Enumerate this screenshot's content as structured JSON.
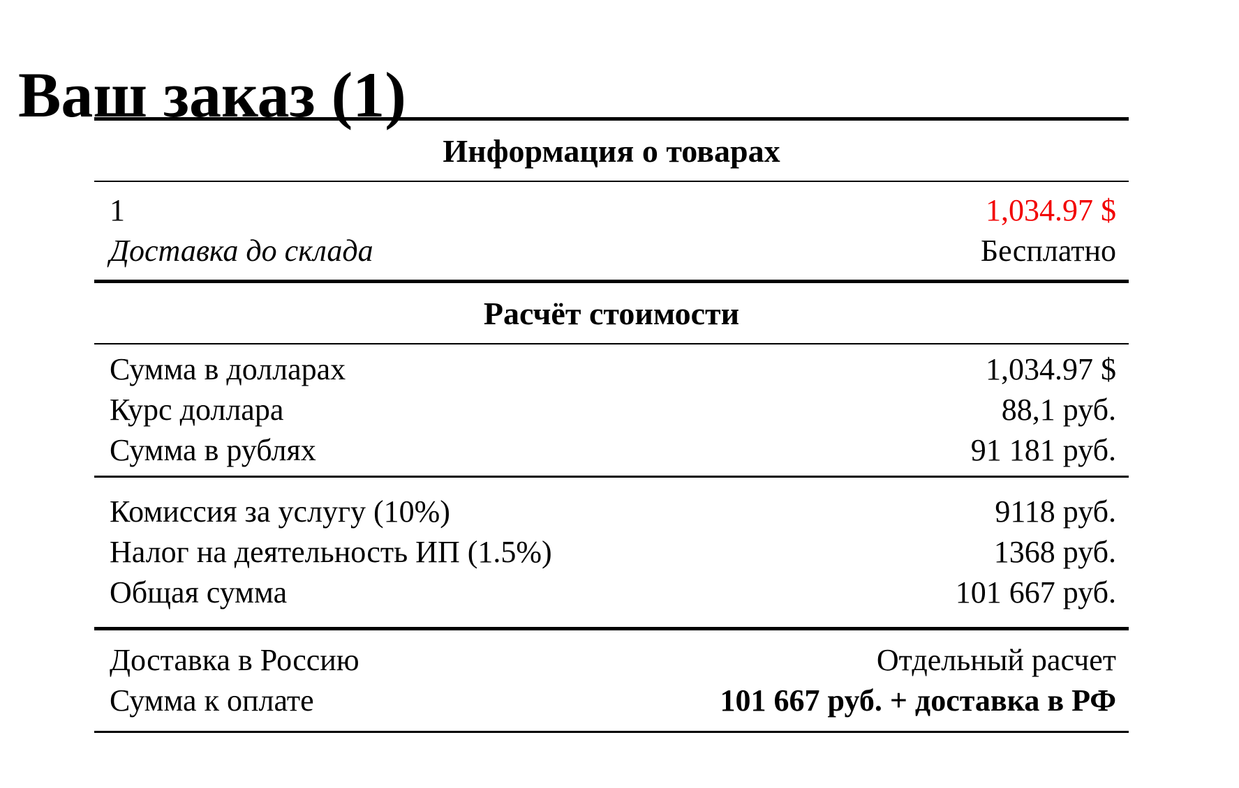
{
  "title": "Ваш заказ (1)",
  "colors": {
    "price_highlight": "#f20000",
    "text": "#000000",
    "rule_lines": "#000000"
  },
  "table": {
    "section_products_header": "Информация о товарах",
    "section_calc_header": "Расчёт стоимости",
    "products": {
      "qty_row": {
        "label": "1",
        "value": "1,034.97 $"
      },
      "delivery_row": {
        "label": "Доставка до склада",
        "value": "Бесплатно"
      }
    },
    "calc_main": [
      {
        "label": "Сумма в долларах",
        "value": "1,034.97 $"
      },
      {
        "label": "Курс доллара",
        "value": "88,1 руб."
      },
      {
        "label": "Сумма в рублях",
        "value": "91 181 руб."
      }
    ],
    "calc_fees": [
      {
        "label": "Комиссия за услугу (10%)",
        "value": "9118 руб."
      },
      {
        "label": "Налог на деятельность ИП (1.5%)",
        "value": "1368 руб."
      },
      {
        "label": "Общая сумма",
        "value": "101 667 руб."
      }
    ],
    "calc_total": [
      {
        "label": "Доставка в Россию",
        "value": "Отдельный расчет"
      },
      {
        "label": "Сумма к оплате",
        "value": "101 667 руб. + доставка в РФ"
      }
    ]
  }
}
